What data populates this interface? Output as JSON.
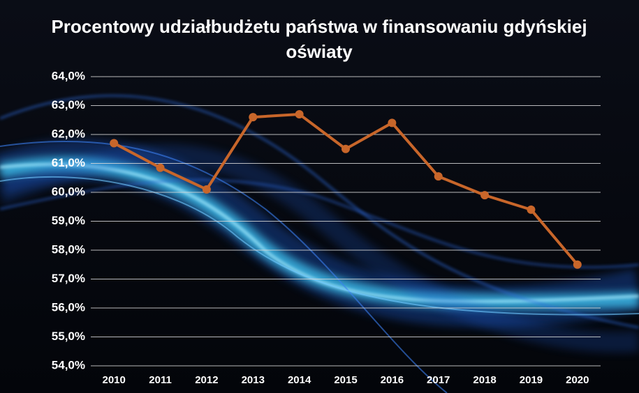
{
  "chart_data": {
    "type": "line",
    "title": "Procentowy udziałbudżetu państwa w finansowaniu gdyńskiej oświaty",
    "categories": [
      "2010",
      "2011",
      "2012",
      "2013",
      "2014",
      "2015",
      "2016",
      "2017",
      "2018",
      "2019",
      "2020"
    ],
    "series": [
      {
        "color": "#c8662a",
        "values": [
          61.7,
          60.85,
          60.1,
          62.6,
          62.7,
          61.5,
          62.4,
          60.55,
          59.9,
          59.4,
          57.5
        ]
      }
    ],
    "ylim": [
      54,
      64
    ],
    "yticks": [
      {
        "value": 54,
        "label": "54,0%"
      },
      {
        "value": 55,
        "label": "55,0%"
      },
      {
        "value": 56,
        "label": "56,0%"
      },
      {
        "value": 57,
        "label": "57,0%"
      },
      {
        "value": 58,
        "label": "58,0%"
      },
      {
        "value": 59,
        "label": "59,0%"
      },
      {
        "value": 60,
        "label": "60,0%"
      },
      {
        "value": 61,
        "label": "61,0%"
      },
      {
        "value": 62,
        "label": "62,0%"
      },
      {
        "value": 63,
        "label": "63,0%"
      },
      {
        "value": 64,
        "label": "64,0%"
      }
    ],
    "grid": true
  }
}
